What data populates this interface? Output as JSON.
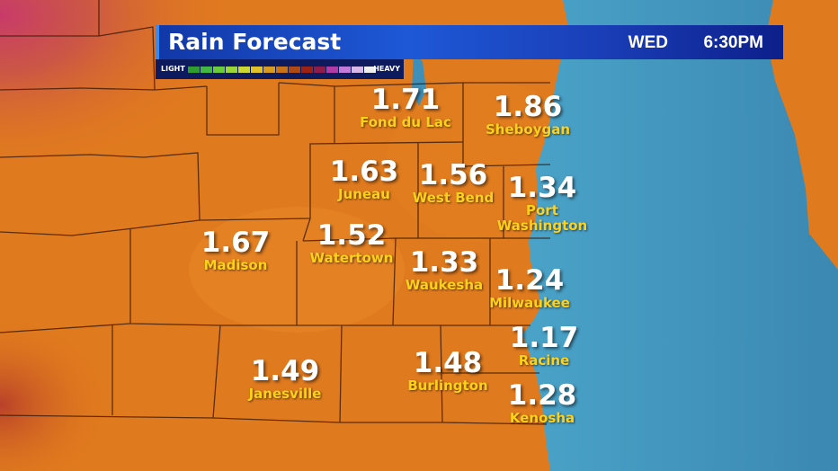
{
  "header": {
    "title": "Rain Forecast",
    "day": "WED",
    "time": "6:30PM"
  },
  "legend": {
    "low_label": "LIGHT",
    "high_label": "HEAVY",
    "colors": [
      "#2f9e2f",
      "#43b843",
      "#6acc3a",
      "#9ad638",
      "#cbd832",
      "#e2c229",
      "#d99a22",
      "#c97319",
      "#b04a14",
      "#9c2216",
      "#8e1c4a",
      "#b03ca8",
      "#c47ad8",
      "#d8b8e8",
      "#eeeeee"
    ]
  },
  "colors": {
    "land": "#e07a1e",
    "lake": "#3f8fb8",
    "header_bg": "#1a48c8",
    "value_text": "#ffffff",
    "city_text": "#ffd21a"
  },
  "cities": [
    {
      "name": "Fond du Lac",
      "value": "1.71"
    },
    {
      "name": "Sheboygan",
      "value": "1.86"
    },
    {
      "name": "Juneau",
      "value": "1.63"
    },
    {
      "name": "West Bend",
      "value": "1.56"
    },
    {
      "name": "Port\nWashington",
      "value": "1.34"
    },
    {
      "name": "Madison",
      "value": "1.67"
    },
    {
      "name": "Watertown",
      "value": "1.52"
    },
    {
      "name": "Waukesha",
      "value": "1.33"
    },
    {
      "name": "Milwaukee",
      "value": "1.24"
    },
    {
      "name": "Racine",
      "value": "1.17"
    },
    {
      "name": "Janesville",
      "value": "1.49"
    },
    {
      "name": "Burlington",
      "value": "1.48"
    },
    {
      "name": "Kenosha",
      "value": "1.28"
    }
  ]
}
